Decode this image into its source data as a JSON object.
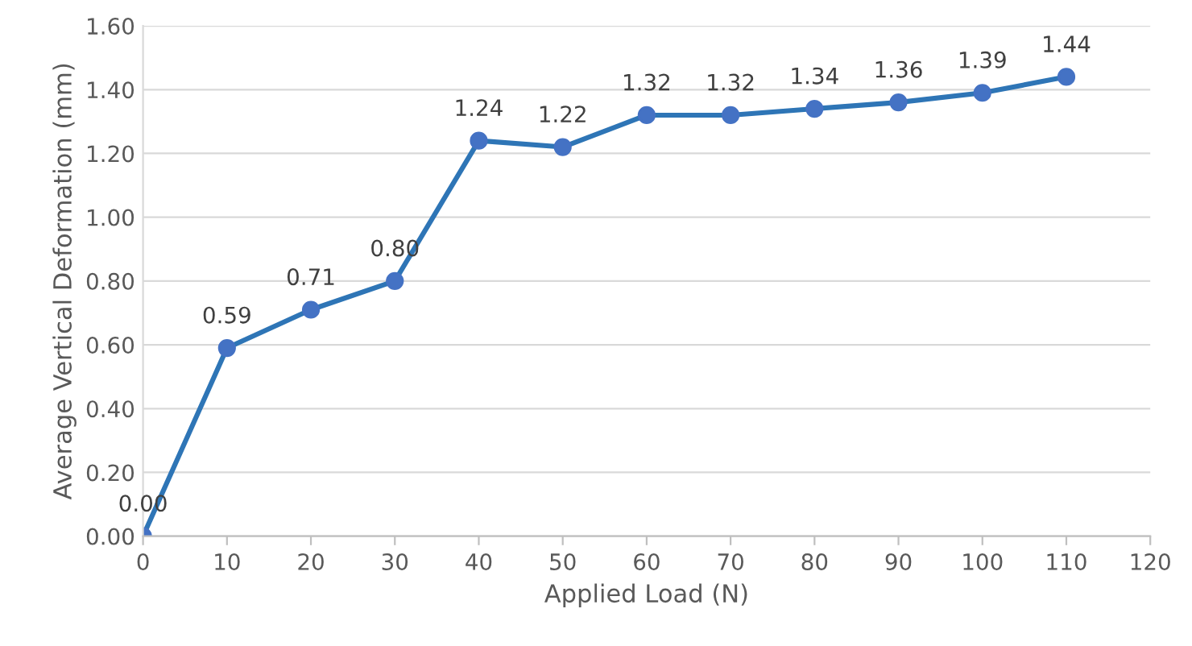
{
  "chart_data": {
    "type": "line",
    "xlabel": "Applied Load (N)",
    "ylabel": "Average Vertical Deformation (mm)",
    "x": [
      0,
      10,
      20,
      30,
      40,
      50,
      60,
      70,
      80,
      90,
      100,
      110
    ],
    "series": [
      {
        "color": "#2e75b6",
        "values": [
          0.0,
          0.59,
          0.71,
          0.8,
          1.24,
          1.22,
          1.32,
          1.32,
          1.34,
          1.36,
          1.39,
          1.44
        ],
        "value_labels": [
          "0.00",
          "0.59",
          "0.71",
          "0.80",
          "1.24",
          "1.22",
          "1.32",
          "1.32",
          "1.34",
          "1.36",
          "1.39",
          "1.44"
        ]
      }
    ],
    "xlim": [
      0,
      120
    ],
    "xticks": [
      0,
      10,
      20,
      30,
      40,
      50,
      60,
      70,
      80,
      90,
      100,
      110,
      120
    ],
    "ylim": [
      0,
      1.6
    ],
    "yticks": [
      {
        "value": 0,
        "label": "0.00"
      },
      {
        "value": 0.2,
        "label": "0.20"
      },
      {
        "value": 0.4,
        "label": "0.40"
      },
      {
        "value": 0.6,
        "label": "0.60"
      },
      {
        "value": 0.8,
        "label": "0.80"
      },
      {
        "value": 1.0,
        "label": "1.00"
      },
      {
        "value": 1.2,
        "label": "1.20"
      },
      {
        "value": 1.4,
        "label": "1.40"
      },
      {
        "value": 1.6,
        "label": "1.60"
      }
    ],
    "grid": "y",
    "marker": "circle",
    "line_style": "solid",
    "legend": false
  }
}
